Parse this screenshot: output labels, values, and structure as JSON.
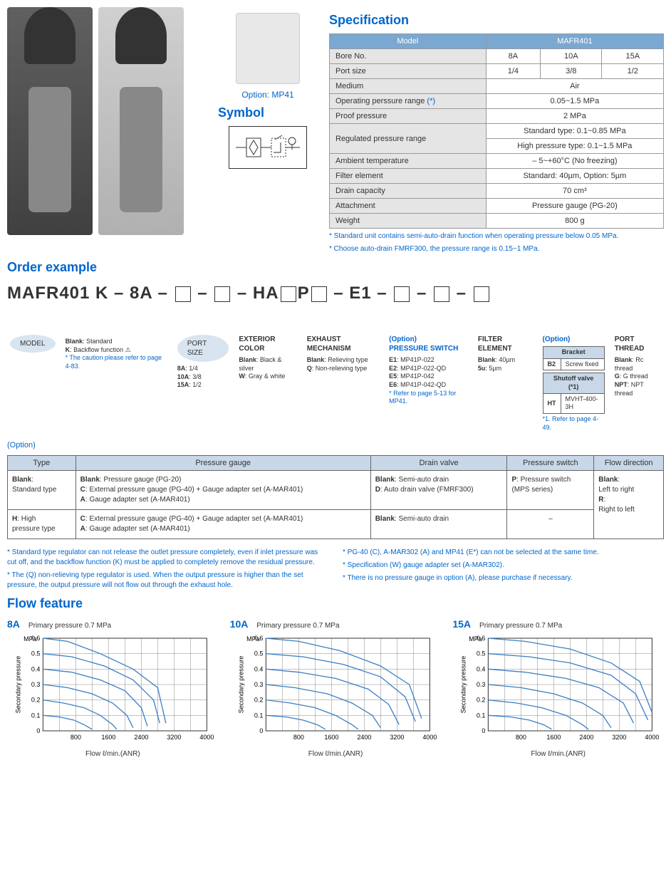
{
  "option_label": "Option: MP41",
  "symbol_heading": "Symbol",
  "spec": {
    "heading": "Specification",
    "model_hdr": "Model",
    "model_val": "MAFR401",
    "rows": [
      {
        "label": "Bore No.",
        "vals": [
          "8A",
          "10A",
          "15A"
        ]
      },
      {
        "label": "Port size",
        "vals": [
          "1/4",
          "3/8",
          "1/2"
        ]
      },
      {
        "label": "Medium",
        "vals": [
          "Air"
        ]
      },
      {
        "label": "Operating perssure range",
        "star": "(*)",
        "vals": [
          "0.05~1.5 MPa"
        ]
      },
      {
        "label": "Proof pressure",
        "vals": [
          "2 MPa"
        ]
      },
      {
        "label": "Regulated pressure range",
        "vals": [
          "Standard type: 0.1~0.85 MPa",
          "High pressure type: 0.1~1.5 MPa"
        ],
        "stacked": true
      },
      {
        "label": "Ambient temperature",
        "vals": [
          "– 5~+60°C (No freezing)"
        ]
      },
      {
        "label": "Filter element",
        "vals": [
          "Standard: 40µm, Option: 5µm"
        ]
      },
      {
        "label": "Drain capacity",
        "vals": [
          "70 cm³"
        ]
      },
      {
        "label": "Attachment",
        "vals": [
          "Pressure gauge (PG-20)"
        ]
      },
      {
        "label": "Weight",
        "vals": [
          "800 g"
        ]
      }
    ],
    "footnotes": [
      "* Standard unit contains semi-auto-drain function when operating pressure below 0.05 MPa.",
      "* Choose auto-drain FMRF300, the pressure range is 0.15~1 MPa."
    ]
  },
  "order": {
    "heading": "Order example",
    "code_parts": [
      "MAFR401 K",
      " – ",
      "8A",
      " – ",
      "□",
      " – ",
      "□",
      " – ",
      "HA",
      "□",
      "P",
      "□",
      " – ",
      "E1",
      " – ",
      "□",
      " – ",
      "□",
      " – ",
      "□"
    ],
    "option_label": "(Option)",
    "items": [
      {
        "hd": "MODEL",
        "oval": true
      },
      {
        "hd": "",
        "body": "Blank: Standard\nK: Backflow function ⚠\n* The caution please refer to page 4-83.",
        "blue_note": true
      },
      {
        "hd": "PORT SIZE",
        "body": "8A: 1/4\n10A: 3/8\n15A: 1/2",
        "oval": true
      },
      {
        "hd": "EXTERIOR COLOR",
        "body": "Blank: Black & silver\nW: Gray & white"
      },
      {
        "hd": "EXHAUST MECHANISM",
        "body": "Blank: Relieving type\nQ: Non-relieving type"
      },
      {
        "hd": "(Option)\nPRESSURE SWITCH",
        "body": "E1: MP41P-022\nE2: MP41P-022-QD\nE5: MP41P-042\nE6: MP41P-042-QD\n* Refer to page 5-13 for MP41.",
        "blue": true
      },
      {
        "hd": "FILTER ELEMENT",
        "body": "Blank: 40µm\n5u: 5µm"
      },
      {
        "hd": "(Option)",
        "blue": true,
        "tables": [
          {
            "th": "Bracket",
            "rows": [
              [
                "B2",
                "Screw fixed"
              ]
            ]
          },
          {
            "th": "Shutoff valve (*1)",
            "rows": [
              [
                "HT",
                "MVHT-400-3H"
              ]
            ]
          }
        ],
        "note": "*1. Refer to page 4-49."
      },
      {
        "hd": "PORT THREAD",
        "body": "Blank: Rc thread\nG: G thread\nNPT: NPT thread"
      }
    ]
  },
  "opt_table": {
    "headers": [
      "Type",
      "Pressure gauge",
      "Drain valve",
      "Pressure switch",
      "Flow direction"
    ],
    "rows": [
      [
        "Blank:\nStandard type",
        "Blank: Pressure gauge (PG-20)\nC: External pressure gauge (PG-40) + Gauge adapter set (A-MAR401)\nA: Gauge adapter set (A-MAR401)",
        "Blank: Semi-auto drain\nD: Auto drain valve (FMRF300)",
        "P: Pressure switch\n(MPS series)",
        "Blank:\nLeft to right\nR:\nRight to left"
      ],
      [
        "H: High\npressure type",
        "C: External pressure gauge (PG-40) + Gauge adapter set (A-MAR401)\nA: Gauge adapter set (A-MAR401)",
        "Blank: Semi-auto drain",
        "–",
        ""
      ]
    ]
  },
  "bottom_notes": {
    "left": [
      "* Standard type regulator can not release the outlet pressure completely, even if inlet pressure was cut off, and the backflow function (K) must be applied to completely remove the residual pressure.",
      "* The (Q) non-relieving type regulator is used. When the output pressure is higher than the set pressure, the output pressure will not flow out through the exhaust hole."
    ],
    "right": [
      "* PG-40 (C), A-MAR302 (A) and MP41 (E*) can not be selected at the same time.",
      "* Specification (W) gauge adapter set (A-MAR302).",
      "* There is no pressure gauge in option (A), please purchase if necessary."
    ]
  },
  "flow": {
    "heading": "Flow feature",
    "ylabel": "Secondary pressure",
    "yunit": "MPa",
    "xlabel": "Flow ℓ/min.(ANR)",
    "ylim": [
      0,
      0.6
    ],
    "yticks": [
      0,
      0.1,
      0.2,
      0.3,
      0.4,
      0.5,
      0.6
    ],
    "xlim": [
      0,
      4000
    ],
    "xticks": [
      800,
      1600,
      2400,
      3200,
      4000
    ],
    "charts": [
      {
        "size": "8A",
        "pp": "Primary pressure 0.7 MPa",
        "series": [
          [
            [
              0,
              0.6
            ],
            [
              600,
              0.58
            ],
            [
              1400,
              0.5
            ],
            [
              2200,
              0.4
            ],
            [
              2800,
              0.28
            ],
            [
              3000,
              0.05
            ]
          ],
          [
            [
              0,
              0.5
            ],
            [
              700,
              0.48
            ],
            [
              1500,
              0.42
            ],
            [
              2200,
              0.33
            ],
            [
              2700,
              0.2
            ],
            [
              2850,
              0.05
            ]
          ],
          [
            [
              0,
              0.4
            ],
            [
              700,
              0.38
            ],
            [
              1400,
              0.33
            ],
            [
              2000,
              0.26
            ],
            [
              2400,
              0.15
            ],
            [
              2550,
              0.03
            ]
          ],
          [
            [
              0,
              0.3
            ],
            [
              600,
              0.28
            ],
            [
              1200,
              0.24
            ],
            [
              1700,
              0.18
            ],
            [
              2050,
              0.1
            ],
            [
              2200,
              0.02
            ]
          ],
          [
            [
              0,
              0.2
            ],
            [
              500,
              0.18
            ],
            [
              1000,
              0.15
            ],
            [
              1400,
              0.1
            ],
            [
              1700,
              0.04
            ],
            [
              1800,
              0.01
            ]
          ],
          [
            [
              0,
              0.1
            ],
            [
              400,
              0.09
            ],
            [
              750,
              0.07
            ],
            [
              1000,
              0.04
            ],
            [
              1200,
              0.01
            ]
          ]
        ]
      },
      {
        "size": "10A",
        "pp": "Primary pressure 0.7 MPa",
        "series": [
          [
            [
              0,
              0.6
            ],
            [
              800,
              0.58
            ],
            [
              1800,
              0.52
            ],
            [
              2800,
              0.42
            ],
            [
              3500,
              0.3
            ],
            [
              3800,
              0.08
            ]
          ],
          [
            [
              0,
              0.5
            ],
            [
              900,
              0.48
            ],
            [
              1900,
              0.43
            ],
            [
              2800,
              0.35
            ],
            [
              3400,
              0.22
            ],
            [
              3650,
              0.06
            ]
          ],
          [
            [
              0,
              0.4
            ],
            [
              800,
              0.38
            ],
            [
              1700,
              0.34
            ],
            [
              2500,
              0.27
            ],
            [
              3000,
              0.17
            ],
            [
              3250,
              0.04
            ]
          ],
          [
            [
              0,
              0.3
            ],
            [
              700,
              0.28
            ],
            [
              1500,
              0.24
            ],
            [
              2100,
              0.18
            ],
            [
              2600,
              0.1
            ],
            [
              2800,
              0.02
            ]
          ],
          [
            [
              0,
              0.2
            ],
            [
              600,
              0.18
            ],
            [
              1200,
              0.15
            ],
            [
              1700,
              0.1
            ],
            [
              2100,
              0.04
            ],
            [
              2250,
              0.01
            ]
          ],
          [
            [
              0,
              0.1
            ],
            [
              500,
              0.09
            ],
            [
              900,
              0.07
            ],
            [
              1250,
              0.04
            ],
            [
              1450,
              0.01
            ]
          ]
        ]
      },
      {
        "size": "15A",
        "pp": "Primary pressure 0.7 MPa",
        "series": [
          [
            [
              0,
              0.6
            ],
            [
              900,
              0.58
            ],
            [
              2000,
              0.53
            ],
            [
              3000,
              0.44
            ],
            [
              3700,
              0.32
            ],
            [
              4000,
              0.12
            ]
          ],
          [
            [
              0,
              0.5
            ],
            [
              1000,
              0.48
            ],
            [
              2000,
              0.44
            ],
            [
              3000,
              0.36
            ],
            [
              3600,
              0.24
            ],
            [
              3900,
              0.07
            ]
          ],
          [
            [
              0,
              0.4
            ],
            [
              900,
              0.38
            ],
            [
              1900,
              0.34
            ],
            [
              2700,
              0.28
            ],
            [
              3300,
              0.18
            ],
            [
              3550,
              0.05
            ]
          ],
          [
            [
              0,
              0.3
            ],
            [
              800,
              0.28
            ],
            [
              1600,
              0.24
            ],
            [
              2300,
              0.18
            ],
            [
              2800,
              0.1
            ],
            [
              3000,
              0.02
            ]
          ],
          [
            [
              0,
              0.2
            ],
            [
              700,
              0.18
            ],
            [
              1300,
              0.15
            ],
            [
              1900,
              0.1
            ],
            [
              2300,
              0.04
            ],
            [
              2450,
              0.01
            ]
          ],
          [
            [
              0,
              0.1
            ],
            [
              550,
              0.09
            ],
            [
              1000,
              0.07
            ],
            [
              1350,
              0.04
            ],
            [
              1550,
              0.01
            ]
          ]
        ]
      }
    ],
    "line_color": "#3a7fc4",
    "grid_color": "#888",
    "bg": "#ffffff"
  }
}
